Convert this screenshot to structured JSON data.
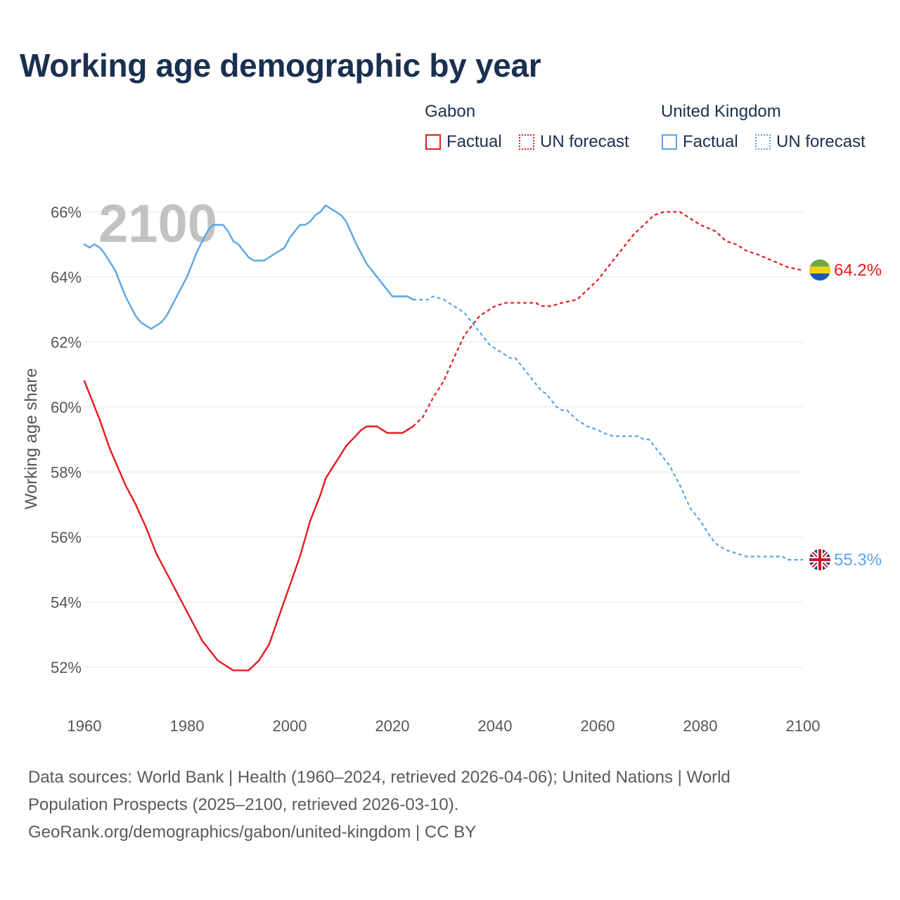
{
  "title": "Working age demographic by year",
  "legend": {
    "groups": [
      {
        "name": "Gabon",
        "color": "#e41a1c",
        "factual_label": "Factual",
        "forecast_label": "UN forecast"
      },
      {
        "name": "United Kingdom",
        "color": "#5aa5e6",
        "factual_label": "Factual",
        "forecast_label": "UN forecast"
      }
    ]
  },
  "footer": {
    "line1": "Data sources: World Bank | Health (1960–2024, retrieved 2026-04-06); United Nations | World",
    "line2": "Population Prospects (2025–2100, retrieved 2026-03-10).",
    "line3": "GeoRank.org/demographics/gabon/united-kingdom | CC BY"
  },
  "chart_data": {
    "type": "line",
    "title": "Working age demographic by year",
    "year_watermark": "2100",
    "xlabel": "",
    "ylabel": "Working age share",
    "xlim": [
      1960,
      2100
    ],
    "ylim": [
      51,
      67
    ],
    "x_ticks": [
      1960,
      1980,
      2000,
      2020,
      2040,
      2060,
      2080,
      2100
    ],
    "x_tick_labels": [
      "1960",
      "1980",
      "2000",
      "2020",
      "2040",
      "2060",
      "2080",
      "2100"
    ],
    "y_ticks": [
      52,
      54,
      56,
      58,
      60,
      62,
      64,
      66
    ],
    "y_tick_labels": [
      "52%",
      "54%",
      "56%",
      "58%",
      "60%",
      "62%",
      "64%",
      "66%"
    ],
    "grid": true,
    "series": [
      {
        "name": "Gabon",
        "color": "#e41a1c",
        "end_label": "64.2%",
        "factual": [
          [
            1960,
            60.8
          ],
          [
            1963,
            59.6
          ],
          [
            1965,
            58.7
          ],
          [
            1968,
            57.6
          ],
          [
            1970,
            57.0
          ],
          [
            1972,
            56.3
          ],
          [
            1974,
            55.5
          ],
          [
            1977,
            54.6
          ],
          [
            1980,
            53.7
          ],
          [
            1983,
            52.8
          ],
          [
            1986,
            52.2
          ],
          [
            1989,
            51.9
          ],
          [
            1992,
            51.9
          ],
          [
            1994,
            52.2
          ],
          [
            1996,
            52.7
          ],
          [
            1998,
            53.6
          ],
          [
            2000,
            54.5
          ],
          [
            2002,
            55.4
          ],
          [
            2004,
            56.5
          ],
          [
            2006,
            57.3
          ],
          [
            2007,
            57.8
          ],
          [
            2009,
            58.3
          ],
          [
            2011,
            58.8
          ],
          [
            2014,
            59.3
          ],
          [
            2015,
            59.4
          ],
          [
            2017,
            59.4
          ],
          [
            2019,
            59.2
          ],
          [
            2022,
            59.2
          ],
          [
            2024,
            59.4
          ]
        ],
        "forecast": [
          [
            2024,
            59.4
          ],
          [
            2026,
            59.7
          ],
          [
            2028,
            60.3
          ],
          [
            2030,
            60.8
          ],
          [
            2032,
            61.5
          ],
          [
            2034,
            62.2
          ],
          [
            2037,
            62.8
          ],
          [
            2040,
            63.1
          ],
          [
            2042,
            63.2
          ],
          [
            2048,
            63.2
          ],
          [
            2049,
            63.1
          ],
          [
            2051,
            63.1
          ],
          [
            2053,
            63.2
          ],
          [
            2056,
            63.3
          ],
          [
            2058,
            63.6
          ],
          [
            2060,
            63.9
          ],
          [
            2062,
            64.3
          ],
          [
            2065,
            64.9
          ],
          [
            2067,
            65.3
          ],
          [
            2069,
            65.6
          ],
          [
            2071,
            65.9
          ],
          [
            2073,
            66.0
          ],
          [
            2076,
            66.0
          ],
          [
            2078,
            65.8
          ],
          [
            2080,
            65.6
          ],
          [
            2083,
            65.4
          ],
          [
            2085,
            65.1
          ],
          [
            2087,
            65.0
          ],
          [
            2089,
            64.8
          ],
          [
            2091,
            64.7
          ],
          [
            2094,
            64.5
          ],
          [
            2097,
            64.3
          ],
          [
            2100,
            64.2
          ]
        ]
      },
      {
        "name": "United Kingdom",
        "color": "#5aa5e6",
        "end_label": "55.3%",
        "factual": [
          [
            1960,
            65.0
          ],
          [
            1961,
            64.9
          ],
          [
            1962,
            65.0
          ],
          [
            1963,
            64.9
          ],
          [
            1964,
            64.7
          ],
          [
            1966,
            64.2
          ],
          [
            1967,
            63.8
          ],
          [
            1968,
            63.4
          ],
          [
            1970,
            62.8
          ],
          [
            1971,
            62.6
          ],
          [
            1973,
            62.4
          ],
          [
            1975,
            62.6
          ],
          [
            1976,
            62.8
          ],
          [
            1978,
            63.4
          ],
          [
            1980,
            64.0
          ],
          [
            1982,
            64.8
          ],
          [
            1984,
            65.4
          ],
          [
            1985,
            65.6
          ],
          [
            1987,
            65.6
          ],
          [
            1988,
            65.4
          ],
          [
            1989,
            65.1
          ],
          [
            1990,
            65.0
          ],
          [
            1992,
            64.6
          ],
          [
            1993,
            64.5
          ],
          [
            1995,
            64.5
          ],
          [
            1997,
            64.7
          ],
          [
            1999,
            64.9
          ],
          [
            2000,
            65.2
          ],
          [
            2002,
            65.6
          ],
          [
            2003,
            65.6
          ],
          [
            2004,
            65.7
          ],
          [
            2005,
            65.9
          ],
          [
            2006,
            66.0
          ],
          [
            2007,
            66.2
          ],
          [
            2008,
            66.1
          ],
          [
            2010,
            65.9
          ],
          [
            2011,
            65.7
          ],
          [
            2013,
            65.0
          ],
          [
            2015,
            64.4
          ],
          [
            2017,
            64.0
          ],
          [
            2019,
            63.6
          ],
          [
            2020,
            63.4
          ],
          [
            2023,
            63.4
          ],
          [
            2024,
            63.3
          ]
        ],
        "forecast": [
          [
            2024,
            63.3
          ],
          [
            2027,
            63.3
          ],
          [
            2028,
            63.4
          ],
          [
            2030,
            63.3
          ],
          [
            2032,
            63.1
          ],
          [
            2034,
            62.9
          ],
          [
            2036,
            62.5
          ],
          [
            2038,
            62.1
          ],
          [
            2039,
            61.9
          ],
          [
            2041,
            61.7
          ],
          [
            2043,
            61.5
          ],
          [
            2044,
            61.5
          ],
          [
            2046,
            61.1
          ],
          [
            2048,
            60.7
          ],
          [
            2049,
            60.5
          ],
          [
            2050,
            60.4
          ],
          [
            2052,
            60.0
          ],
          [
            2053,
            59.9
          ],
          [
            2054,
            59.9
          ],
          [
            2056,
            59.6
          ],
          [
            2058,
            59.4
          ],
          [
            2060,
            59.3
          ],
          [
            2061,
            59.2
          ],
          [
            2063,
            59.1
          ],
          [
            2068,
            59.1
          ],
          [
            2069,
            59.0
          ],
          [
            2070,
            59.0
          ],
          [
            2072,
            58.6
          ],
          [
            2074,
            58.2
          ],
          [
            2076,
            57.6
          ],
          [
            2078,
            56.9
          ],
          [
            2080,
            56.5
          ],
          [
            2082,
            56.0
          ],
          [
            2083,
            55.8
          ],
          [
            2085,
            55.6
          ],
          [
            2087,
            55.5
          ],
          [
            2089,
            55.4
          ],
          [
            2096,
            55.4
          ],
          [
            2097,
            55.3
          ],
          [
            2100,
            55.3
          ]
        ]
      }
    ]
  }
}
